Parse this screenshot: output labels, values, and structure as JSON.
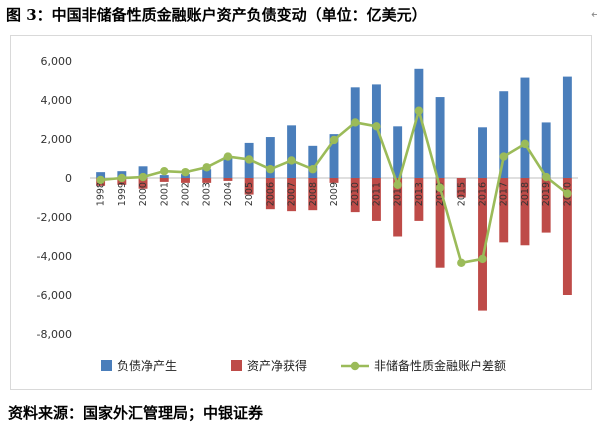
{
  "figure": {
    "title": "图 3：中国非储备性质金融账户资产负债变动（单位：亿美元）",
    "source": "资料来源：国家外汇管理局；中银证券"
  },
  "chart_data": {
    "type": "bar",
    "categories": [
      "1998",
      "1999",
      "2000",
      "2001",
      "2002",
      "2003",
      "2004",
      "2005",
      "2006",
      "2007",
      "2008",
      "2009",
      "2010",
      "2011",
      "2012",
      "2013",
      "2014",
      "2015",
      "2016",
      "2017",
      "2018",
      "2019",
      "2020"
    ],
    "ylim": [
      -8000,
      6000
    ],
    "yticks": [
      -8000,
      -6000,
      -4000,
      -2000,
      0,
      2000,
      4000,
      6000
    ],
    "ytick_labels": [
      "-8,000",
      "-6,000",
      "-4,000",
      "-2,000",
      "0",
      "2,000",
      "4,000",
      "6,000"
    ],
    "grid": false,
    "legend_position": "bottom",
    "series": [
      {
        "name": "负债净产生",
        "type": "bar",
        "color": "#4a7ebb",
        "values": [
          300,
          350,
          600,
          150,
          200,
          450,
          1100,
          1800,
          2100,
          2700,
          1650,
          2250,
          4650,
          4800,
          2650,
          5600,
          4150,
          -900,
          2600,
          4450,
          5150,
          2850,
          5200
        ]
      },
      {
        "name": "资产净获得",
        "type": "bar",
        "color": "#be4b48",
        "values": [
          -400,
          -350,
          -550,
          -200,
          -250,
          -250,
          -150,
          -850,
          -1600,
          -1700,
          -1650,
          -250,
          -1750,
          -2200,
          -3000,
          -2200,
          -4600,
          -1000,
          -6800,
          -3300,
          -3450,
          -2800,
          -6000
        ]
      },
      {
        "name": "非储备性质金融账户差额",
        "type": "line",
        "color": "#9bbb59",
        "values": [
          -100,
          0,
          50,
          350,
          300,
          550,
          1100,
          950,
          450,
          900,
          450,
          1950,
          2850,
          2650,
          -350,
          3450,
          -500,
          -4350,
          -4150,
          1100,
          1750,
          50,
          -800
        ]
      }
    ]
  }
}
